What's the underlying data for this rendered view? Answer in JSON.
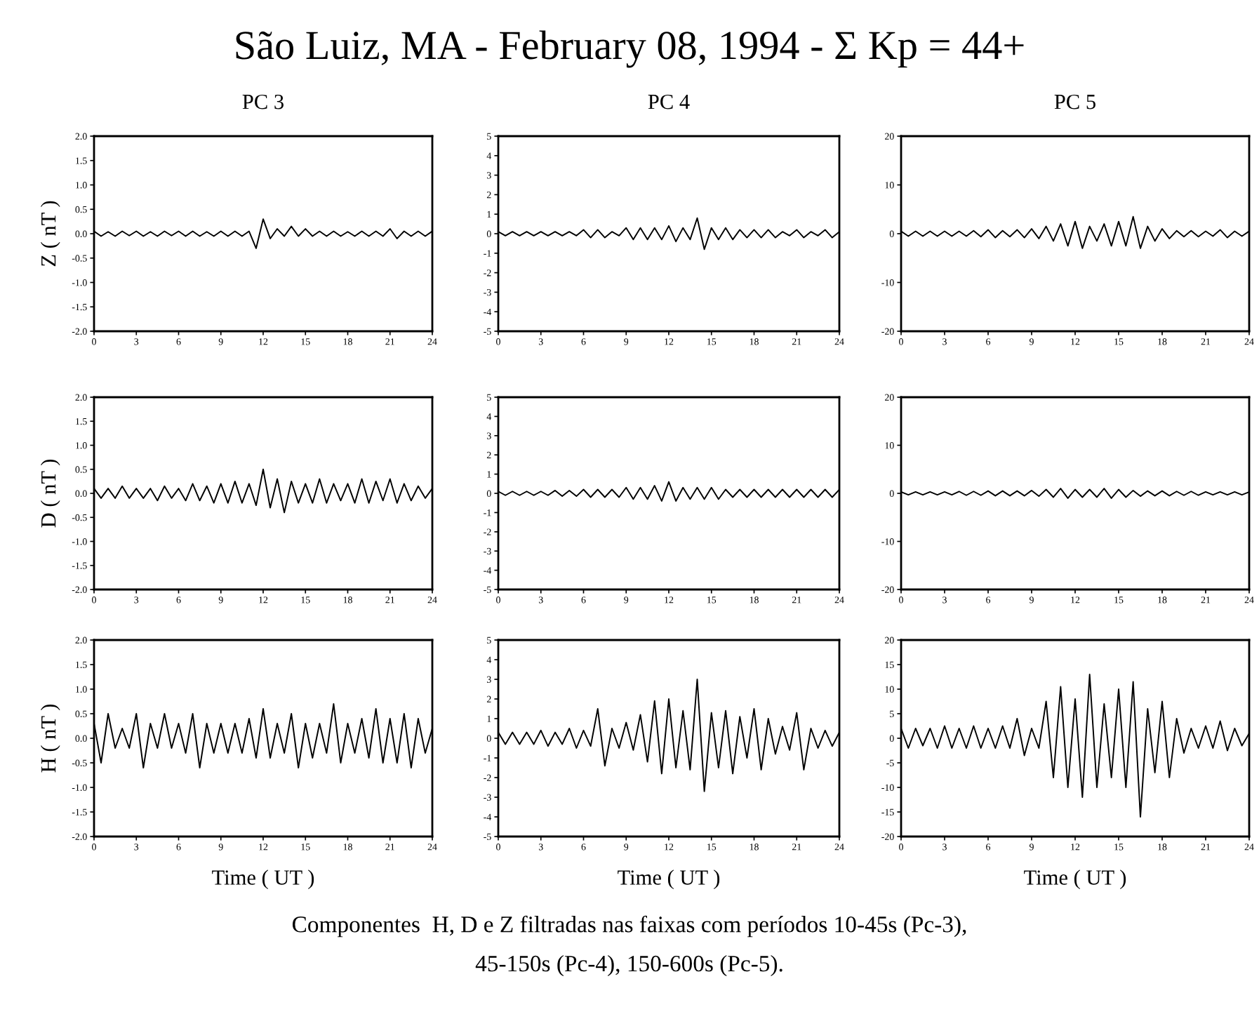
{
  "chart_data": [
    {
      "type": "other",
      "title": "São Luiz, MA - February 08, 1994 - Σ Kp = 44+",
      "annotations": [
        "Componentes  H, D e Z filtradas nas faixas com períodos 10-45s (Pc-3),",
        "45-150s (Pc-4), 150-600s (Pc-5)."
      ]
    },
    {
      "type": "line",
      "title": "PC 3",
      "ylabel": "Z ( nT )",
      "xlim": [
        0,
        24
      ],
      "xticks": [
        0,
        3,
        6,
        9,
        12,
        15,
        18,
        21,
        24
      ],
      "ylim": [
        -2,
        2
      ],
      "yticks": [
        {
          "value": -2,
          "label": "-2.0"
        },
        {
          "value": -1.5,
          "label": "-1.5"
        },
        {
          "value": -1,
          "label": "-1.0"
        },
        {
          "value": -0.5,
          "label": "-0.5"
        },
        {
          "value": 0,
          "label": "0.0"
        },
        {
          "value": 0.5,
          "label": "0.5"
        },
        {
          "value": 1,
          "label": "1.0"
        },
        {
          "value": 1.5,
          "label": "1.5"
        },
        {
          "value": 2,
          "label": "2.0"
        }
      ],
      "x": [
        0,
        0.5,
        1,
        1.5,
        2,
        2.5,
        3,
        3.5,
        4,
        4.5,
        5,
        5.5,
        6,
        6.5,
        7,
        7.5,
        8,
        8.5,
        9,
        9.5,
        10,
        10.5,
        11,
        11.5,
        12,
        12.5,
        13,
        13.5,
        14,
        14.5,
        15,
        15.5,
        16,
        16.5,
        17,
        17.5,
        18,
        18.5,
        19,
        19.5,
        20,
        20.5,
        21,
        21.5,
        22,
        22.5,
        23,
        23.5,
        24
      ],
      "series": [
        {
          "color": "#000000",
          "values": [
            0.05,
            -0.05,
            0.04,
            -0.05,
            0.05,
            -0.04,
            0.05,
            -0.05,
            0.04,
            -0.05,
            0.05,
            -0.04,
            0.05,
            -0.05,
            0.05,
            -0.05,
            0.04,
            -0.05,
            0.05,
            -0.05,
            0.05,
            -0.05,
            0.05,
            -0.3,
            0.3,
            -0.1,
            0.1,
            -0.05,
            0.15,
            -0.05,
            0.1,
            -0.05,
            0.05,
            -0.05,
            0.05,
            -0.05,
            0.04,
            -0.05,
            0.05,
            -0.05,
            0.05,
            -0.05,
            0.1,
            -0.1,
            0.05,
            -0.05,
            0.05,
            -0.05,
            0.05
          ]
        }
      ]
    },
    {
      "type": "line",
      "title": "PC 4",
      "xlim": [
        0,
        24
      ],
      "xticks": [
        0,
        3,
        6,
        9,
        12,
        15,
        18,
        21,
        24
      ],
      "ylim": [
        -5,
        5
      ],
      "yticks": [
        -5,
        -4,
        -3,
        -2,
        -1,
        0,
        1,
        2,
        3,
        4,
        5
      ],
      "x": [
        0,
        0.5,
        1,
        1.5,
        2,
        2.5,
        3,
        3.5,
        4,
        4.5,
        5,
        5.5,
        6,
        6.5,
        7,
        7.5,
        8,
        8.5,
        9,
        9.5,
        10,
        10.5,
        11,
        11.5,
        12,
        12.5,
        13,
        13.5,
        14,
        14.5,
        15,
        15.5,
        16,
        16.5,
        17,
        17.5,
        18,
        18.5,
        19,
        19.5,
        20,
        20.5,
        21,
        21.5,
        22,
        22.5,
        23,
        23.5,
        24
      ],
      "series": [
        {
          "color": "#000000",
          "values": [
            0.1,
            -0.1,
            0.1,
            -0.1,
            0.1,
            -0.1,
            0.1,
            -0.1,
            0.1,
            -0.1,
            0.1,
            -0.1,
            0.2,
            -0.2,
            0.2,
            -0.2,
            0.1,
            -0.1,
            0.3,
            -0.3,
            0.3,
            -0.3,
            0.3,
            -0.3,
            0.4,
            -0.4,
            0.3,
            -0.3,
            0.8,
            -0.8,
            0.3,
            -0.3,
            0.3,
            -0.3,
            0.2,
            -0.2,
            0.2,
            -0.2,
            0.2,
            -0.2,
            0.1,
            -0.1,
            0.2,
            -0.2,
            0.1,
            -0.1,
            0.2,
            -0.2,
            0.1
          ]
        }
      ]
    },
    {
      "type": "line",
      "title": "PC 5",
      "xlim": [
        0,
        24
      ],
      "xticks": [
        0,
        3,
        6,
        9,
        12,
        15,
        18,
        21,
        24
      ],
      "ylim": [
        -20,
        20
      ],
      "yticks": [
        -20,
        -10,
        0,
        10,
        20
      ],
      "x": [
        0,
        0.5,
        1,
        1.5,
        2,
        2.5,
        3,
        3.5,
        4,
        4.5,
        5,
        5.5,
        6,
        6.5,
        7,
        7.5,
        8,
        8.5,
        9,
        9.5,
        10,
        10.5,
        11,
        11.5,
        12,
        12.5,
        13,
        13.5,
        14,
        14.5,
        15,
        15.5,
        16,
        16.5,
        17,
        17.5,
        18,
        18.5,
        19,
        19.5,
        20,
        20.5,
        21,
        21.5,
        22,
        22.5,
        23,
        23.5,
        24
      ],
      "series": [
        {
          "color": "#000000",
          "values": [
            0.5,
            -0.5,
            0.5,
            -0.5,
            0.5,
            -0.5,
            0.5,
            -0.5,
            0.5,
            -0.5,
            0.6,
            -0.6,
            0.8,
            -0.8,
            0.6,
            -0.6,
            0.8,
            -0.8,
            1.0,
            -1.0,
            1.5,
            -1.5,
            2.0,
            -2.5,
            2.5,
            -3.0,
            1.5,
            -1.5,
            2.0,
            -2.5,
            2.5,
            -2.5,
            3.5,
            -3.0,
            1.5,
            -1.5,
            1.0,
            -1.0,
            0.6,
            -0.6,
            0.6,
            -0.6,
            0.5,
            -0.5,
            0.8,
            -0.8,
            0.5,
            -0.5,
            0.5
          ]
        }
      ]
    },
    {
      "type": "line",
      "ylabel": "D ( nT )",
      "xlim": [
        0,
        24
      ],
      "xticks": [
        0,
        3,
        6,
        9,
        12,
        15,
        18,
        21,
        24
      ],
      "ylim": [
        -2,
        2
      ],
      "yticks": [
        {
          "value": -2,
          "label": "-2.0"
        },
        {
          "value": -1.5,
          "label": "-1.5"
        },
        {
          "value": -1,
          "label": "-1.0"
        },
        {
          "value": -0.5,
          "label": "-0.5"
        },
        {
          "value": 0,
          "label": "0.0"
        },
        {
          "value": 0.5,
          "label": "0.5"
        },
        {
          "value": 1,
          "label": "1.0"
        },
        {
          "value": 1.5,
          "label": "1.5"
        },
        {
          "value": 2,
          "label": "2.0"
        }
      ],
      "x": [
        0,
        0.5,
        1,
        1.5,
        2,
        2.5,
        3,
        3.5,
        4,
        4.5,
        5,
        5.5,
        6,
        6.5,
        7,
        7.5,
        8,
        8.5,
        9,
        9.5,
        10,
        10.5,
        11,
        11.5,
        12,
        12.5,
        13,
        13.5,
        14,
        14.5,
        15,
        15.5,
        16,
        16.5,
        17,
        17.5,
        18,
        18.5,
        19,
        19.5,
        20,
        20.5,
        21,
        21.5,
        22,
        22.5,
        23,
        23.5,
        24
      ],
      "series": [
        {
          "color": "#000000",
          "values": [
            0.1,
            -0.1,
            0.1,
            -0.1,
            0.15,
            -0.1,
            0.1,
            -0.1,
            0.1,
            -0.15,
            0.15,
            -0.1,
            0.1,
            -0.15,
            0.2,
            -0.15,
            0.15,
            -0.2,
            0.2,
            -0.2,
            0.25,
            -0.2,
            0.2,
            -0.25,
            0.5,
            -0.3,
            0.3,
            -0.4,
            0.25,
            -0.2,
            0.2,
            -0.2,
            0.3,
            -0.2,
            0.2,
            -0.15,
            0.2,
            -0.2,
            0.3,
            -0.2,
            0.25,
            -0.15,
            0.3,
            -0.2,
            0.2,
            -0.15,
            0.15,
            -0.1,
            0.1
          ]
        }
      ]
    },
    {
      "type": "line",
      "xlim": [
        0,
        24
      ],
      "xticks": [
        0,
        3,
        6,
        9,
        12,
        15,
        18,
        21,
        24
      ],
      "ylim": [
        -5,
        5
      ],
      "yticks": [
        -5,
        -4,
        -3,
        -2,
        -1,
        0,
        1,
        2,
        3,
        4,
        5
      ],
      "x": [
        0,
        0.5,
        1,
        1.5,
        2,
        2.5,
        3,
        3.5,
        4,
        4.5,
        5,
        5.5,
        6,
        6.5,
        7,
        7.5,
        8,
        8.5,
        9,
        9.5,
        10,
        10.5,
        11,
        11.5,
        12,
        12.5,
        13,
        13.5,
        14,
        14.5,
        15,
        15.5,
        16,
        16.5,
        17,
        17.5,
        18,
        18.5,
        19,
        19.5,
        20,
        20.5,
        21,
        21.5,
        22,
        22.5,
        23,
        23.5,
        24
      ],
      "series": [
        {
          "color": "#000000",
          "values": [
            0.1,
            -0.1,
            0.1,
            -0.1,
            0.1,
            -0.1,
            0.1,
            -0.1,
            0.15,
            -0.15,
            0.15,
            -0.15,
            0.2,
            -0.2,
            0.2,
            -0.2,
            0.2,
            -0.2,
            0.3,
            -0.3,
            0.3,
            -0.3,
            0.4,
            -0.4,
            0.6,
            -0.4,
            0.3,
            -0.3,
            0.3,
            -0.3,
            0.3,
            -0.3,
            0.2,
            -0.2,
            0.2,
            -0.2,
            0.2,
            -0.2,
            0.2,
            -0.2,
            0.2,
            -0.2,
            0.2,
            -0.2,
            0.2,
            -0.2,
            0.2,
            -0.2,
            0.2
          ]
        }
      ]
    },
    {
      "type": "line",
      "xlim": [
        0,
        24
      ],
      "xticks": [
        0,
        3,
        6,
        9,
        12,
        15,
        18,
        21,
        24
      ],
      "ylim": [
        -20,
        20
      ],
      "yticks": [
        -20,
        -10,
        0,
        10,
        20
      ],
      "x": [
        0,
        0.5,
        1,
        1.5,
        2,
        2.5,
        3,
        3.5,
        4,
        4.5,
        5,
        5.5,
        6,
        6.5,
        7,
        7.5,
        8,
        8.5,
        9,
        9.5,
        10,
        10.5,
        11,
        11.5,
        12,
        12.5,
        13,
        13.5,
        14,
        14.5,
        15,
        15.5,
        16,
        16.5,
        17,
        17.5,
        18,
        18.5,
        19,
        19.5,
        20,
        20.5,
        21,
        21.5,
        22,
        22.5,
        23,
        23.5,
        24
      ],
      "series": [
        {
          "color": "#000000",
          "values": [
            0.3,
            -0.3,
            0.3,
            -0.3,
            0.3,
            -0.3,
            0.3,
            -0.3,
            0.4,
            -0.4,
            0.4,
            -0.4,
            0.5,
            -0.5,
            0.5,
            -0.5,
            0.5,
            -0.5,
            0.6,
            -0.6,
            0.8,
            -0.8,
            1.0,
            -1.0,
            0.8,
            -0.8,
            0.8,
            -0.8,
            1.0,
            -1.0,
            0.8,
            -0.8,
            0.6,
            -0.6,
            0.5,
            -0.5,
            0.5,
            -0.5,
            0.4,
            -0.4,
            0.4,
            -0.4,
            0.3,
            -0.3,
            0.3,
            -0.3,
            0.3,
            -0.3,
            0.3
          ]
        }
      ]
    },
    {
      "type": "line",
      "ylabel": "H ( nT )",
      "xlabel": "Time ( UT )",
      "xlim": [
        0,
        24
      ],
      "xticks": [
        0,
        3,
        6,
        9,
        12,
        15,
        18,
        21,
        24
      ],
      "ylim": [
        -2,
        2
      ],
      "yticks": [
        {
          "value": -2,
          "label": "-2.0"
        },
        {
          "value": -1.5,
          "label": "-1.5"
        },
        {
          "value": -1,
          "label": "-1.0"
        },
        {
          "value": -0.5,
          "label": "-0.5"
        },
        {
          "value": 0,
          "label": "0.0"
        },
        {
          "value": 0.5,
          "label": "0.5"
        },
        {
          "value": 1,
          "label": "1.0"
        },
        {
          "value": 1.5,
          "label": "1.5"
        },
        {
          "value": 2,
          "label": "2.0"
        }
      ],
      "x": [
        0,
        0.5,
        1,
        1.5,
        2,
        2.5,
        3,
        3.5,
        4,
        4.5,
        5,
        5.5,
        6,
        6.5,
        7,
        7.5,
        8,
        8.5,
        9,
        9.5,
        10,
        10.5,
        11,
        11.5,
        12,
        12.5,
        13,
        13.5,
        14,
        14.5,
        15,
        15.5,
        16,
        16.5,
        17,
        17.5,
        18,
        18.5,
        19,
        19.5,
        20,
        20.5,
        21,
        21.5,
        22,
        22.5,
        23,
        23.5,
        24
      ],
      "series": [
        {
          "color": "#000000",
          "values": [
            0.3,
            -0.5,
            0.5,
            -0.2,
            0.2,
            -0.2,
            0.5,
            -0.6,
            0.3,
            -0.2,
            0.5,
            -0.2,
            0.3,
            -0.3,
            0.5,
            -0.6,
            0.3,
            -0.3,
            0.3,
            -0.3,
            0.3,
            -0.3,
            0.4,
            -0.4,
            0.6,
            -0.4,
            0.3,
            -0.3,
            0.5,
            -0.6,
            0.3,
            -0.4,
            0.3,
            -0.3,
            0.7,
            -0.5,
            0.3,
            -0.3,
            0.4,
            -0.4,
            0.6,
            -0.5,
            0.4,
            -0.5,
            0.5,
            -0.6,
            0.4,
            -0.3,
            0.2
          ]
        }
      ]
    },
    {
      "type": "line",
      "xlabel": "Time ( UT )",
      "xlim": [
        0,
        24
      ],
      "xticks": [
        0,
        3,
        6,
        9,
        12,
        15,
        18,
        21,
        24
      ],
      "ylim": [
        -5,
        5
      ],
      "yticks": [
        -5,
        -4,
        -3,
        -2,
        -1,
        0,
        1,
        2,
        3,
        4,
        5
      ],
      "x": [
        0,
        0.5,
        1,
        1.5,
        2,
        2.5,
        3,
        3.5,
        4,
        4.5,
        5,
        5.5,
        6,
        6.5,
        7,
        7.5,
        8,
        8.5,
        9,
        9.5,
        10,
        10.5,
        11,
        11.5,
        12,
        12.5,
        13,
        13.5,
        14,
        14.5,
        15,
        15.5,
        16,
        16.5,
        17,
        17.5,
        18,
        18.5,
        19,
        19.5,
        20,
        20.5,
        21,
        21.5,
        22,
        22.5,
        23,
        23.5,
        24
      ],
      "series": [
        {
          "color": "#000000",
          "values": [
            0.3,
            -0.3,
            0.3,
            -0.3,
            0.3,
            -0.3,
            0.4,
            -0.4,
            0.3,
            -0.3,
            0.5,
            -0.5,
            0.4,
            -0.4,
            1.5,
            -1.4,
            0.5,
            -0.5,
            0.8,
            -0.6,
            1.2,
            -1.2,
            1.9,
            -1.8,
            2.0,
            -1.5,
            1.4,
            -1.6,
            3.0,
            -2.7,
            1.3,
            -1.5,
            1.4,
            -1.8,
            1.1,
            -1.0,
            1.5,
            -1.6,
            1.0,
            -0.8,
            0.6,
            -0.6,
            1.3,
            -1.6,
            0.5,
            -0.5,
            0.4,
            -0.4,
            0.3
          ]
        }
      ]
    },
    {
      "type": "line",
      "xlabel": "Time ( UT )",
      "xlim": [
        0,
        24
      ],
      "xticks": [
        0,
        3,
        6,
        9,
        12,
        15,
        18,
        21,
        24
      ],
      "ylim": [
        -20,
        20
      ],
      "yticks": [
        -20,
        -15,
        -10,
        -5,
        0,
        5,
        10,
        15,
        20
      ],
      "x": [
        0,
        0.5,
        1,
        1.5,
        2,
        2.5,
        3,
        3.5,
        4,
        4.5,
        5,
        5.5,
        6,
        6.5,
        7,
        7.5,
        8,
        8.5,
        9,
        9.5,
        10,
        10.5,
        11,
        11.5,
        12,
        12.5,
        13,
        13.5,
        14,
        14.5,
        15,
        15.5,
        16,
        16.5,
        17,
        17.5,
        18,
        18.5,
        19,
        19.5,
        20,
        20.5,
        21,
        21.5,
        22,
        22.5,
        23,
        23.5,
        24
      ],
      "series": [
        {
          "color": "#000000",
          "values": [
            2,
            -2,
            2,
            -1.5,
            2,
            -2,
            2.5,
            -2,
            2,
            -2,
            2.5,
            -2,
            2,
            -2,
            2.5,
            -2,
            4,
            -3.5,
            2,
            -2,
            7.5,
            -8,
            10.5,
            -10,
            8,
            -12,
            13,
            -10,
            7,
            -8,
            10,
            -10,
            11.5,
            -16,
            6,
            -7,
            7.5,
            -8,
            4,
            -3,
            2,
            -2,
            2.5,
            -2,
            3.5,
            -2.5,
            2,
            -1.5,
            1
          ]
        }
      ]
    }
  ]
}
